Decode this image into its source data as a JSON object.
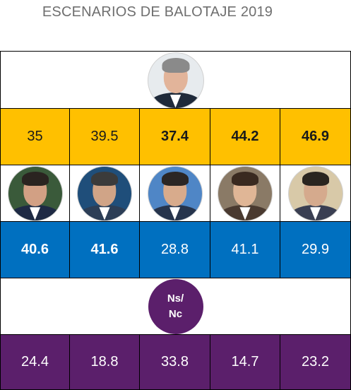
{
  "title": "ESCENARIOS DE BALOTAJE 2019",
  "top_candidate": {
    "icon": "portrait-icon",
    "bg": "#e7ebee",
    "skin": "#e2b49a",
    "hair": "#8a8a8a",
    "body": "#1f2a3a"
  },
  "challengers": [
    {
      "icon": "portrait-icon",
      "bg": "#3a5a3a",
      "skin": "#d2a084",
      "hair": "#2a2420",
      "body": "#1e2a44"
    },
    {
      "icon": "portrait-icon",
      "bg": "#1f4e7a",
      "skin": "#d0a487",
      "hair": "#3b3b3b",
      "body": "#2c3e56"
    },
    {
      "icon": "portrait-icon",
      "bg": "#4f86c6",
      "skin": "#d8ab8c",
      "hair": "#2b2624",
      "body": "#26344c"
    },
    {
      "icon": "portrait-icon",
      "bg": "#8a7a66",
      "skin": "#e0b696",
      "hair": "#3a2a20",
      "body": "#4a3a30"
    },
    {
      "icon": "portrait-icon",
      "bg": "#d8c9a8",
      "skin": "#d5aa8d",
      "hair": "#2a2520",
      "body": "#3a3f52"
    }
  ],
  "nsnc_label_1": "Ns/",
  "nsnc_label_2": "Nc",
  "colors": {
    "yellow": "#ffc000",
    "blue": "#0070c0",
    "purple": "#5b1f6b"
  },
  "chart_data": {
    "type": "table",
    "title": "ESCENARIOS DE BALOTAJE 2019",
    "rows": [
      {
        "name": "top_candidate_share",
        "values": [
          "35",
          "39.5",
          "37.4",
          "44.2",
          "46.9"
        ],
        "bold": [
          false,
          false,
          true,
          true,
          true
        ]
      },
      {
        "name": "challenger_share",
        "values": [
          "40.6",
          "41.6",
          "28.8",
          "41.1",
          "29.9"
        ],
        "bold": [
          true,
          true,
          false,
          false,
          false
        ]
      },
      {
        "name": "Ns/Nc",
        "values": [
          "24.4",
          "18.8",
          "33.8",
          "14.7",
          "23.2"
        ],
        "bold": [
          false,
          false,
          false,
          false,
          false
        ]
      }
    ]
  }
}
